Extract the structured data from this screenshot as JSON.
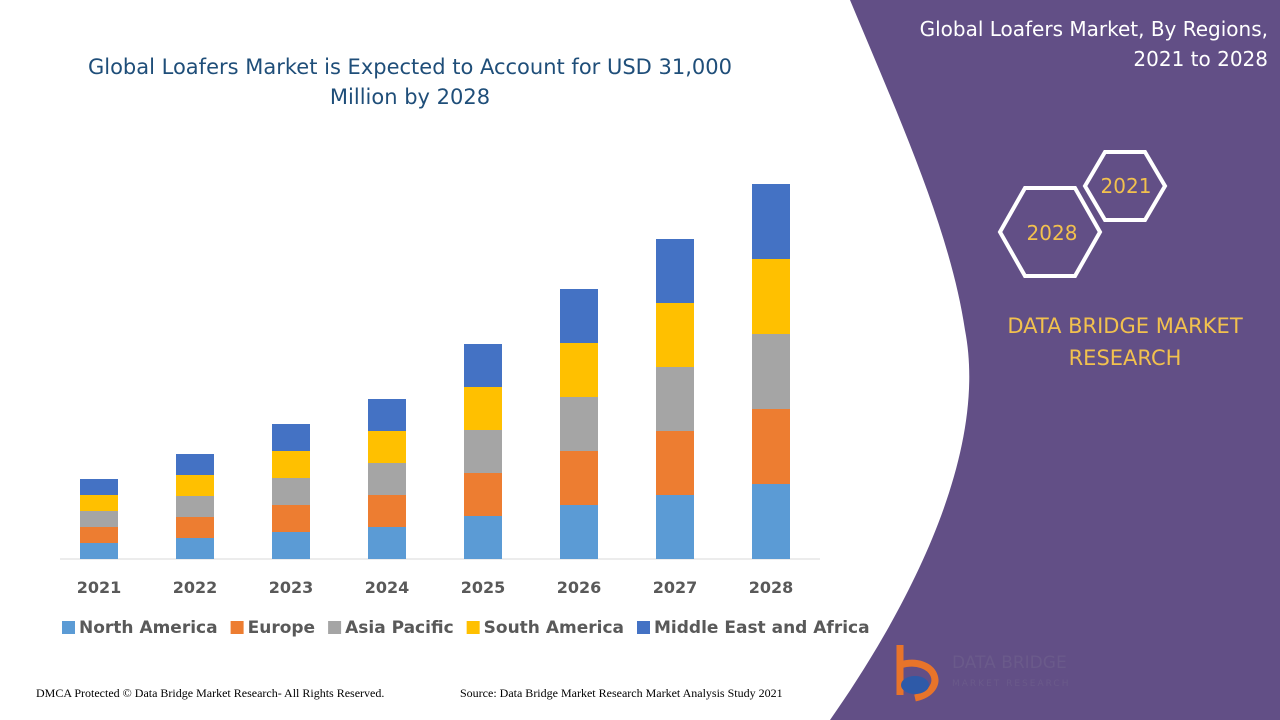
{
  "chart_data": {
    "type": "bar",
    "stacked": true,
    "title": "Global Loafers Market is Expected to Account for USD 31,000 Million by 2028",
    "categories": [
      "2021",
      "2022",
      "2023",
      "2024",
      "2025",
      "2026",
      "2027",
      "2028"
    ],
    "series": [
      {
        "name": "North America",
        "color": "#5b9bd5",
        "values": [
          16,
          21,
          27,
          32,
          43,
          54,
          64,
          75
        ]
      },
      {
        "name": "Europe",
        "color": "#ed7d31",
        "values": [
          16,
          21,
          27,
          32,
          43,
          54,
          64,
          75
        ]
      },
      {
        "name": "Asia Pacific",
        "color": "#a5a5a5",
        "values": [
          16,
          21,
          27,
          32,
          43,
          54,
          64,
          75
        ]
      },
      {
        "name": "South America",
        "color": "#ffc000",
        "values": [
          16,
          21,
          27,
          32,
          43,
          54,
          64,
          75
        ]
      },
      {
        "name": "Middle East and Africa",
        "color": "#4472c4",
        "values": [
          16,
          21,
          27,
          32,
          43,
          54,
          64,
          75
        ]
      }
    ]
  },
  "panel": {
    "title": "Global Loafers Market, By Regions, 2021 to 2028",
    "hexagons": [
      "2021",
      "2028"
    ],
    "brand": "DATA BRIDGE MARKET RESEARCH"
  },
  "logo": {
    "name": "DATA BRIDGE",
    "tagline": "MARKET RESEARCH"
  },
  "footer": {
    "copyright": "DMCA Protected © Data Bridge Market Research- All Rights Reserved.",
    "source": "Source: Data Bridge Market Research Market Analysis Study 2021"
  }
}
